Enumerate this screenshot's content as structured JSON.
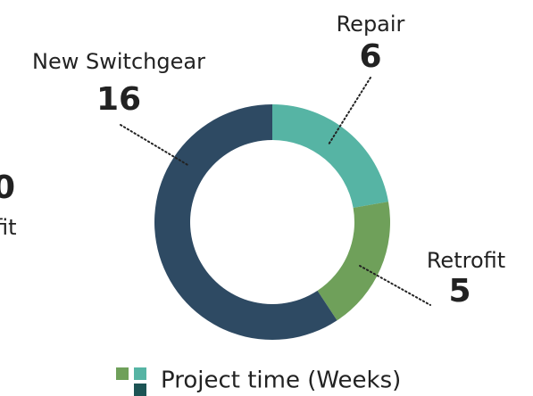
{
  "chart_data": {
    "type": "pie",
    "donut": true,
    "categories": [
      "Repair",
      "Retrofit",
      "New Switchgear"
    ],
    "values": [
      6,
      5,
      16
    ],
    "colors": [
      "#56b4a4",
      "#6fa05a",
      "#2e4a63"
    ],
    "legend_label": "Project time (Weeks)",
    "legend_colors": [
      "#6fa05a",
      "#56b4a4",
      "#1d5455"
    ],
    "cropped_labels": [
      "0",
      "fit"
    ]
  }
}
